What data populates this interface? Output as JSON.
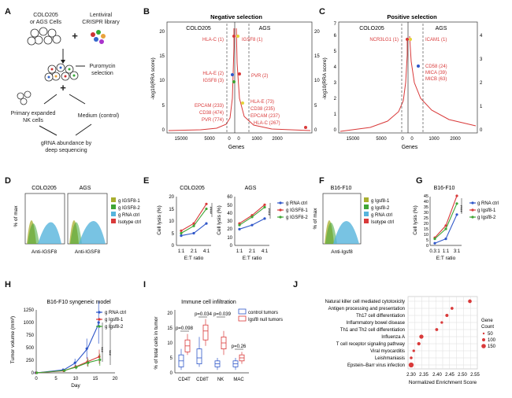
{
  "colors": {
    "red": "#d93a3a",
    "blue": "#2f57c9",
    "green": "#3fa535",
    "olive": "#a8ae2e",
    "cyan": "#56b4dc",
    "gray": "#555555",
    "yellow": "#e3d53a"
  },
  "panels": {
    "A": "A",
    "B": "B",
    "C": "C",
    "D": "D",
    "E": "E",
    "F": "F",
    "G": "G",
    "H": "H",
    "I": "I",
    "J": "J"
  },
  "panelA": {
    "cells_label_1": "COLO205",
    "cells_label_2": "or AGS Cells",
    "library_label_1": "Lentiviral",
    "library_label_2": "CRISPR library",
    "plus": "+",
    "selection_1": "Puromycin",
    "selection_2": "selection",
    "nk_1": "Primary expanded",
    "nk_2": "NK cells",
    "medium_1": "Medium (control)",
    "readout_1": "gRNA abundance by",
    "readout_2": "deep sequencing"
  },
  "panelB": {
    "title": "Negative selection",
    "left_label": "COLO205",
    "right_label": "AGS",
    "ylabel": "-log10(RRA score)",
    "xlabel": "Genes",
    "left_yticks": [
      "0",
      "5",
      "10",
      "15",
      "20"
    ],
    "right_yticks": [
      "0",
      "5",
      "10",
      "15",
      "20"
    ],
    "left_xticks": [
      "15000",
      "5000",
      "0"
    ],
    "right_xticks": [
      "0",
      "1000",
      "2000"
    ],
    "left_genes": [
      "HLA-C (1)",
      "HLA-E (2)",
      "IGSF8 (3)",
      "EPCAM (233)",
      "CD38 (474)",
      "PVR (774)"
    ],
    "right_genes": [
      "IGSF8 (1)",
      "PVR (2)",
      "HLA-E (73)",
      "CD38 (235)",
      "EPCAM (237)",
      "HLA-C (267)"
    ]
  },
  "panelC": {
    "title": "Positive selection",
    "left_label": "COLO205",
    "right_label": "AGS",
    "ylabel": "-log10(RRA score)",
    "xlabel": "Genes",
    "yticks": [
      "0",
      "1",
      "2",
      "3",
      "4",
      "5",
      "6",
      "7"
    ],
    "right_yticks": [
      "0",
      "1",
      "2",
      "3",
      "4"
    ],
    "left_xticks": [
      "15000",
      "5000",
      "0"
    ],
    "right_xticks": [
      "0",
      "1000",
      "2000"
    ],
    "left_genes": [
      "NCR3LG1 (1)"
    ],
    "right_genes": [
      "ICAM1 (1)",
      "CD58 (24)",
      "MICA (39)",
      "MICB (63)"
    ]
  },
  "panelD": {
    "hist1_title": "COLO205",
    "hist2_title": "AGS",
    "ylabel": "% of max",
    "xlabel1": "Anti-IGSF8",
    "xlabel2": "Anti-IGSF8",
    "legend": [
      "g IGSF8-1",
      "g IGSF8-2",
      "g RNA ctrl",
      "Isotype ctrl"
    ]
  },
  "panelE": {
    "chart1_title": "COLO205",
    "chart2_title": "AGS",
    "ylabel": "Cell lysis (%)",
    "xlabel": "E:T ratio",
    "xticks": [
      "1:1",
      "2:1",
      "4:1"
    ],
    "yticks1": [
      "0",
      "5",
      "10",
      "15",
      "20"
    ],
    "yticks2": [
      "0",
      "10",
      "20",
      "30",
      "40",
      "50",
      "60"
    ],
    "sig1": "****",
    "sig2": "****",
    "legend": [
      "g RNA ctrl",
      "g IGSF8-1",
      "g IGSF8-2"
    ]
  },
  "panelF": {
    "hist_title": "B16-F10",
    "ylabel": "% of max",
    "xlabel": "Anti-Igsf8",
    "legend": [
      "g Igsf8-1",
      "g Igsf8-2",
      "g RNA ctrl",
      "Isotype ctrl"
    ]
  },
  "panelG": {
    "chart_title": "B16-F10",
    "ylabel": "Cell lysis (%)",
    "xlabel": "E:T ratio",
    "xticks": [
      "0.3:1",
      "1:1",
      "3:1"
    ],
    "yticks": [
      "0",
      "5",
      "10",
      "15",
      "20",
      "25",
      "30",
      "35",
      "40",
      "45"
    ],
    "sig": "****",
    "legend": [
      "g RNA ctrl",
      "g Igsf8-1",
      "g Igsf8-2"
    ]
  },
  "panelH": {
    "chart_title": "B16-F10 syngeneic model",
    "ylabel": "Tumor volume (mm³)",
    "xlabel": "Day",
    "xticks": [
      "0",
      "5",
      "10",
      "15",
      "20"
    ],
    "yticks": [
      "0",
      "250",
      "500",
      "750",
      "1000",
      "1250"
    ],
    "sig1": "***",
    "sig2": "***",
    "legend": [
      "g RNA ctrl",
      "g Igsf8-1",
      "g Igsf8-2"
    ]
  },
  "panelI": {
    "chart_title": "Immune cell infiltration",
    "ylabel": "% of total cells in tumor",
    "xticks": [
      "CD4T",
      "CD8T",
      "NK",
      "MAC"
    ],
    "yticks": [
      "0",
      "5",
      "10",
      "15",
      "20"
    ],
    "pvalues": [
      "p=0.098",
      "p=0.034",
      "p=0.039",
      "p=0.26"
    ],
    "legend": [
      "control tumors",
      "Igsf8 null tumors"
    ]
  },
  "panelJ": {
    "xlabel": "Normalized Enrichment Score",
    "xticks": [
      "2.30",
      "2.35",
      "2.40",
      "2.45",
      "2.50",
      "2.55"
    ],
    "size_title_1": "Gene",
    "size_title_2": "Count",
    "size_legend": [
      "50",
      "100",
      "150"
    ],
    "pathways": [
      "Natural killer cell mediated cytotoxicity",
      "Antigen processing and presentation",
      "Th17 cell differentiation",
      "Inflammatory bowel disease",
      "Th1 and Th2 cell differentiation",
      "Influenza A",
      "T cell receptor signaling pathway",
      "Viral myocarditis",
      "Leishmaniasis",
      "Epstein–Barr virus infection"
    ]
  },
  "chart_data": [
    {
      "type": "line",
      "panel": "E-COLO205",
      "title": "COLO205",
      "xlabel": "E:T ratio",
      "ylabel": "Cell lysis (%)",
      "categories": [
        "1:1",
        "2:1",
        "4:1"
      ],
      "ylim": [
        0,
        20
      ],
      "series": [
        {
          "name": "g RNA ctrl",
          "values": [
            4,
            5,
            9
          ]
        },
        {
          "name": "g IGSF8-1",
          "values": [
            6,
            9,
            17
          ]
        },
        {
          "name": "g IGSF8-2",
          "values": [
            5,
            8,
            15
          ]
        }
      ]
    },
    {
      "type": "line",
      "panel": "E-AGS",
      "title": "AGS",
      "xlabel": "E:T ratio",
      "ylabel": "Cell lysis (%)",
      "categories": [
        "1:1",
        "2:1",
        "4:1"
      ],
      "ylim": [
        0,
        60
      ],
      "series": [
        {
          "name": "g RNA ctrl",
          "values": [
            20,
            25,
            33
          ]
        },
        {
          "name": "g IGSF8-1",
          "values": [
            27,
            37,
            50
          ]
        },
        {
          "name": "g IGSF8-2",
          "values": [
            25,
            35,
            47
          ]
        }
      ]
    },
    {
      "type": "line",
      "panel": "G",
      "title": "B16-F10",
      "xlabel": "E:T ratio",
      "ylabel": "Cell lysis (%)",
      "categories": [
        "0.3:1",
        "1:1",
        "3:1"
      ],
      "ylim": [
        0,
        45
      ],
      "series": [
        {
          "name": "g RNA ctrl",
          "values": [
            2,
            6,
            28
          ]
        },
        {
          "name": "g Igsf8-1",
          "values": [
            7,
            18,
            45
          ]
        },
        {
          "name": "g Igsf8-2",
          "values": [
            6,
            15,
            38
          ]
        }
      ]
    },
    {
      "type": "line",
      "panel": "H",
      "title": "B16-F10 syngeneic model",
      "xlabel": "Day",
      "ylabel": "Tumor volume (mm³)",
      "x": [
        0,
        7,
        10,
        13,
        16
      ],
      "xlim": [
        0,
        20
      ],
      "ylim": [
        0,
        1250
      ],
      "series": [
        {
          "name": "g RNA ctrl",
          "values": [
            0,
            60,
            200,
            480,
            1000
          ],
          "errors": [
            0,
            20,
            80,
            200,
            420
          ]
        },
        {
          "name": "g Igsf8-1",
          "values": [
            0,
            40,
            120,
            220,
            320
          ],
          "errors": [
            0,
            15,
            40,
            90,
            140
          ]
        },
        {
          "name": "g Igsf8-2",
          "values": [
            0,
            45,
            110,
            200,
            260
          ],
          "errors": [
            0,
            15,
            40,
            80,
            120
          ]
        }
      ]
    },
    {
      "type": "box",
      "panel": "I",
      "title": "Immune cell infiltration",
      "ylabel": "% of total cells in tumor",
      "categories": [
        "CD4T",
        "CD8T",
        "NK",
        "MAC"
      ],
      "ylim": [
        0,
        20
      ],
      "series": [
        {
          "name": "control tumors",
          "boxes": [
            [
              1,
              2,
              4,
              6,
              8
            ],
            [
              2,
              3,
              5,
              8,
              12
            ],
            [
              1,
              2,
              3,
              4,
              5
            ],
            [
              1,
              2,
              3,
              4,
              5
            ]
          ]
        },
        {
          "name": "Igsf8 null tumors",
          "boxes": [
            [
              6,
              7,
              9,
              11,
              13
            ],
            [
              9,
              11,
              14,
              16,
              18
            ],
            [
              6,
              8,
              10,
              12,
              14
            ],
            [
              3,
              4,
              5,
              6,
              7
            ]
          ]
        }
      ],
      "pvalues": [
        "p=0.098",
        "p=0.034",
        "p=0.039",
        "p=0.26"
      ]
    },
    {
      "type": "scatter",
      "panel": "J",
      "xlabel": "Normalized Enrichment Score",
      "xlim": [
        2.3,
        2.55
      ],
      "categories": [
        "Natural killer cell mediated cytotoxicity",
        "Antigen processing and presentation",
        "Th17 cell differentiation",
        "Inflammatory bowel disease",
        "Th1 and Th2 cell differentiation",
        "Influenza A",
        "T cell receptor signaling pathway",
        "Viral myocarditis",
        "Leishmaniasis",
        "Epstein–Barr virus infection"
      ],
      "values": [
        2.53,
        2.46,
        2.44,
        2.42,
        2.4,
        2.34,
        2.33,
        2.31,
        2.3,
        2.3
      ],
      "gene_counts": [
        80,
        50,
        60,
        40,
        55,
        100,
        70,
        40,
        45,
        130
      ]
    },
    {
      "type": "line",
      "panel": "B",
      "title": "Negative selection",
      "ylabel": "-log10(RRA score)",
      "xlabel": "Genes",
      "ylim": [
        0,
        22
      ],
      "labeled_genes": [
        {
          "name": "HLA-C",
          "rank": 1
        },
        {
          "name": "HLA-E",
          "rank": 2
        },
        {
          "name": "IGSF8",
          "rank": 3
        },
        {
          "name": "EPCAM",
          "rank": 233
        },
        {
          "name": "CD38",
          "rank": 474
        },
        {
          "name": "PVR",
          "rank": 774
        }
      ]
    },
    {
      "type": "line",
      "panel": "C",
      "title": "Positive selection",
      "ylabel": "-log10(RRA score)",
      "xlabel": "Genes",
      "ylim": [
        0,
        7
      ],
      "labeled_genes": [
        {
          "name": "NCR3LG1",
          "rank": 1
        },
        {
          "name": "ICAM1",
          "rank": 1
        },
        {
          "name": "CD58",
          "rank": 24
        },
        {
          "name": "MICA",
          "rank": 39
        },
        {
          "name": "MICB",
          "rank": 63
        }
      ]
    }
  ]
}
